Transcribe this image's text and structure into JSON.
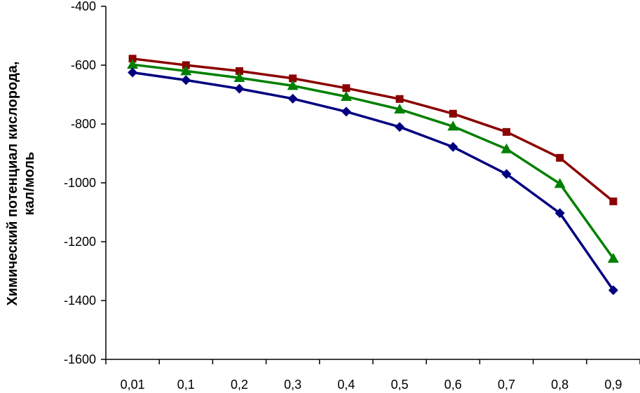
{
  "chart_data": {
    "type": "line",
    "title": "",
    "xlabel": "",
    "ylabel_lines": [
      "Химический потенциал кислорода,",
      "кал/моль"
    ],
    "categories": [
      "0,01",
      "0,1",
      "0,2",
      "0,3",
      "0,4",
      "0,5",
      "0,6",
      "0,7",
      "0,8",
      "0,9"
    ],
    "ylim": [
      -1600,
      -400
    ],
    "yticks": [
      -400,
      -600,
      -800,
      -1000,
      -1200,
      -1400,
      -1600
    ],
    "grid": false,
    "legend": "none",
    "series": [
      {
        "marker": "square",
        "color": "#8b0000",
        "values": [
          -578,
          -600,
          -620,
          -645,
          -678,
          -715,
          -765,
          -827,
          -915,
          -1063
        ]
      },
      {
        "marker": "triangle",
        "color": "#008000",
        "values": [
          -598,
          -620,
          -643,
          -670,
          -707,
          -750,
          -808,
          -885,
          -1003,
          -1257
        ]
      },
      {
        "marker": "diamond",
        "color": "#000080",
        "values": [
          -625,
          -651,
          -680,
          -714,
          -758,
          -810,
          -878,
          -970,
          -1103,
          -1365
        ]
      }
    ]
  }
}
